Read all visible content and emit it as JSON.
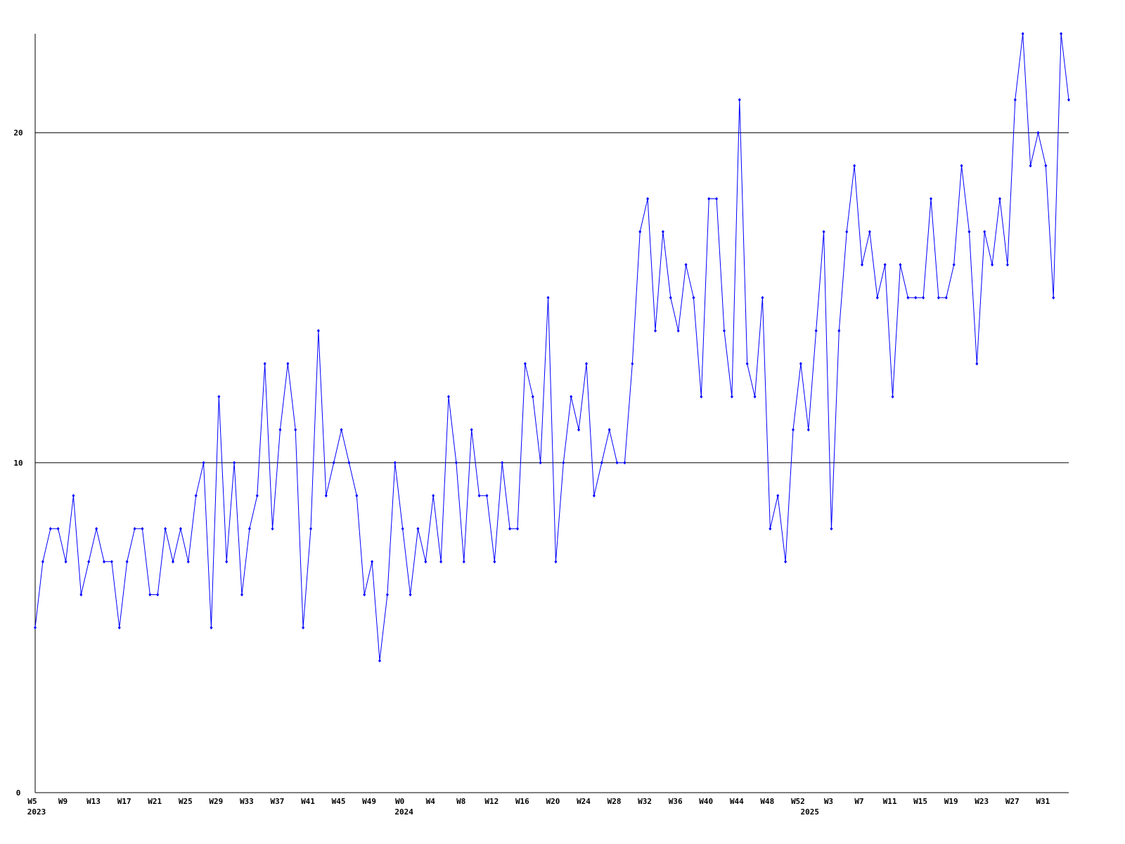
{
  "chart_data": {
    "type": "line",
    "categories": [
      "W5",
      null,
      null,
      null,
      "W9",
      null,
      null,
      null,
      "W13",
      null,
      null,
      null,
      "W17",
      null,
      null,
      null,
      "W21",
      null,
      null,
      null,
      "W25",
      null,
      null,
      null,
      "W29",
      null,
      null,
      null,
      "W33",
      null,
      null,
      null,
      "W37",
      null,
      null,
      null,
      "W41",
      null,
      null,
      null,
      "W45",
      null,
      null,
      null,
      "W49",
      null,
      null,
      null,
      "W0",
      null,
      null,
      null,
      "W4",
      null,
      null,
      null,
      "W8",
      null,
      null,
      null,
      "W12",
      null,
      null,
      null,
      "W16",
      null,
      null,
      null,
      "W20",
      null,
      null,
      null,
      "W24",
      null,
      null,
      null,
      "W28",
      null,
      null,
      null,
      "W32",
      null,
      null,
      null,
      "W36",
      null,
      null,
      null,
      "W40",
      null,
      null,
      null,
      "W44",
      null,
      null,
      null,
      "W48",
      null,
      null,
      null,
      "W52",
      null,
      null,
      null,
      "W3",
      null,
      null,
      null,
      "W7",
      null,
      null,
      null,
      "W11",
      null,
      null,
      null,
      "W15",
      null,
      null,
      null,
      "W19",
      null,
      null,
      null,
      "W23",
      null,
      null,
      null,
      "W27",
      null,
      null,
      null,
      "W31",
      null,
      null,
      null
    ],
    "years": [
      "2023",
      null,
      null,
      null,
      null,
      null,
      null,
      null,
      null,
      null,
      null,
      null,
      null,
      null,
      null,
      null,
      null,
      null,
      null,
      null,
      null,
      null,
      null,
      null,
      null,
      null,
      null,
      null,
      null,
      null,
      null,
      null,
      null,
      null,
      null,
      null,
      null,
      null,
      null,
      null,
      null,
      null,
      null,
      null,
      null,
      null,
      null,
      null,
      "2024",
      null,
      null,
      null,
      null,
      null,
      null,
      null,
      null,
      null,
      null,
      null,
      null,
      null,
      null,
      null,
      null,
      null,
      null,
      null,
      null,
      null,
      null,
      null,
      null,
      null,
      null,
      null,
      null,
      null,
      null,
      null,
      null,
      null,
      null,
      null,
      null,
      null,
      null,
      null,
      null,
      null,
      null,
      null,
      null,
      null,
      null,
      null,
      null,
      null,
      null,
      null,
      null,
      "2025",
      null,
      null,
      null,
      null,
      null,
      null,
      null,
      null,
      null,
      null,
      null,
      null,
      null,
      null,
      null,
      null,
      null,
      null,
      null,
      null,
      null,
      null,
      null,
      null,
      null,
      null,
      null,
      null,
      null,
      null,
      null,
      null,
      null,
      null
    ],
    "series": [
      {
        "color": "#0000ff",
        "values": [
          5,
          7,
          8,
          8,
          7,
          9,
          6,
          7,
          8,
          7,
          7,
          5,
          7,
          8,
          8,
          6,
          6,
          8,
          7,
          8,
          7,
          9,
          10,
          5,
          12,
          7,
          10,
          6,
          8,
          9,
          13,
          8,
          11,
          13,
          11,
          5,
          8,
          14,
          9,
          10,
          11,
          10,
          9,
          6,
          7,
          4,
          6,
          10,
          8,
          6,
          8,
          7,
          9,
          7,
          12,
          10,
          7,
          11,
          9,
          9,
          7,
          10,
          8,
          8,
          13,
          12,
          10,
          15,
          7,
          10,
          12,
          11,
          13,
          9,
          10,
          11,
          10,
          10,
          13,
          17,
          18,
          14,
          17,
          15,
          14,
          16,
          15,
          12,
          18,
          18,
          14,
          12,
          21,
          13,
          12,
          15,
          8,
          9,
          7,
          11,
          13,
          11,
          14,
          17,
          8,
          14,
          17,
          19,
          16,
          17,
          15,
          16,
          12,
          16,
          15,
          15,
          15,
          18,
          15,
          15,
          16,
          19,
          17,
          13,
          17,
          16,
          18,
          16,
          21,
          23,
          19,
          20,
          19,
          15,
          23,
          21
        ]
      }
    ],
    "ylim": [
      0,
      23
    ],
    "yticks": [
      0,
      10,
      20
    ],
    "grid": true
  }
}
